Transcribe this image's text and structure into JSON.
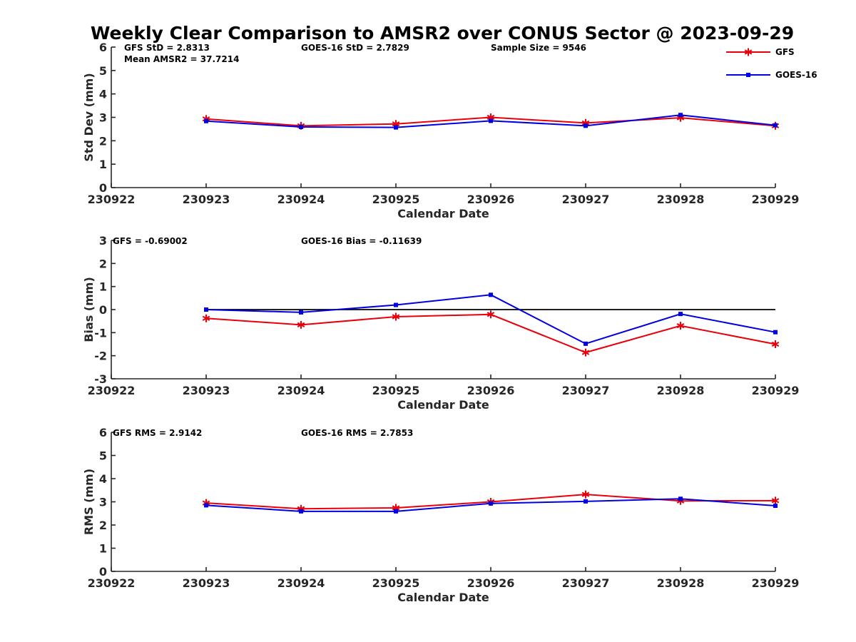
{
  "title": "Weekly Clear Comparison to AMSR2 over CONUS Sector @ 2023-09-29",
  "colors": {
    "gfs": "#e8000b",
    "goes": "#0000e0",
    "zero_line": "#000000"
  },
  "legend": {
    "placement": "top-right",
    "items": [
      {
        "label": "GFS",
        "marker": "asterisk",
        "color": "#e8000b"
      },
      {
        "label": "GOES-16",
        "marker": "square",
        "color": "#0000e0"
      }
    ]
  },
  "chart_data": [
    {
      "type": "line",
      "ylabel": "Std Dev (mm)",
      "xlabel": "Calendar Date",
      "xlim": [
        "230922",
        "230929"
      ],
      "ylim": [
        0,
        6
      ],
      "yticks": [
        "0",
        "1",
        "2",
        "3",
        "4",
        "5",
        "6"
      ],
      "x": [
        "230922",
        "230923",
        "230924",
        "230925",
        "230926",
        "230927",
        "230928",
        "230929"
      ],
      "series": [
        {
          "name": "GFS",
          "x": [
            "230923",
            "230924",
            "230925",
            "230926",
            "230927",
            "230928",
            "230929"
          ],
          "values": [
            2.93,
            2.64,
            2.72,
            3.0,
            2.76,
            2.98,
            2.64
          ]
        },
        {
          "name": "GOES-16",
          "x": [
            "230923",
            "230924",
            "230925",
            "230926",
            "230927",
            "230928",
            "230929"
          ],
          "values": [
            2.84,
            2.59,
            2.57,
            2.85,
            2.64,
            3.1,
            2.66
          ]
        }
      ],
      "annotations": [
        [
          "GFS StD = 2.8313",
          "Mean AMSR2 = 37.7214"
        ],
        [
          "GOES-16 StD = 2.7829"
        ],
        [
          "Sample Size = 9546"
        ]
      ]
    },
    {
      "type": "line",
      "ylabel": "Bias (mm)",
      "xlabel": "Calendar Date",
      "xlim": [
        "230922",
        "230929"
      ],
      "ylim": [
        -3,
        3
      ],
      "yticks": [
        "-3",
        "-2",
        "-1",
        "0",
        "1",
        "2",
        "3"
      ],
      "zero_line": true,
      "x": [
        "230922",
        "230923",
        "230924",
        "230925",
        "230926",
        "230927",
        "230928",
        "230929"
      ],
      "series": [
        {
          "name": "GFS",
          "x": [
            "230923",
            "230924",
            "230925",
            "230926",
            "230927",
            "230928",
            "230929"
          ],
          "values": [
            -0.38,
            -0.66,
            -0.31,
            -0.21,
            -1.86,
            -0.7,
            -1.5
          ]
        },
        {
          "name": "GOES-16",
          "x": [
            "230923",
            "230924",
            "230925",
            "230926",
            "230927",
            "230928",
            "230929"
          ],
          "values": [
            0.0,
            -0.12,
            0.2,
            0.64,
            -1.48,
            -0.19,
            -0.98
          ]
        }
      ],
      "annotations": [
        [
          "GFS = -0.69002"
        ],
        [
          "GOES-16 Bias  = -0.11639"
        ]
      ]
    },
    {
      "type": "line",
      "ylabel": "RMS (mm)",
      "xlabel": "Calendar Date",
      "xlim": [
        "230922",
        "230929"
      ],
      "ylim": [
        0,
        6
      ],
      "yticks": [
        "0",
        "1",
        "2",
        "3",
        "4",
        "5",
        "6"
      ],
      "x": [
        "230922",
        "230923",
        "230924",
        "230925",
        "230926",
        "230927",
        "230928",
        "230929"
      ],
      "series": [
        {
          "name": "GFS",
          "x": [
            "230923",
            "230924",
            "230925",
            "230926",
            "230927",
            "230928",
            "230929"
          ],
          "values": [
            2.95,
            2.7,
            2.74,
            3.0,
            3.32,
            3.04,
            3.05
          ]
        },
        {
          "name": "GOES-16",
          "x": [
            "230923",
            "230924",
            "230925",
            "230926",
            "230927",
            "230928",
            "230929"
          ],
          "values": [
            2.85,
            2.59,
            2.59,
            2.93,
            3.02,
            3.13,
            2.83
          ]
        }
      ],
      "annotations": [
        [
          "GFS RMS = 2.9142"
        ],
        [
          "GOES-16 RMS = 2.7853"
        ]
      ]
    }
  ]
}
